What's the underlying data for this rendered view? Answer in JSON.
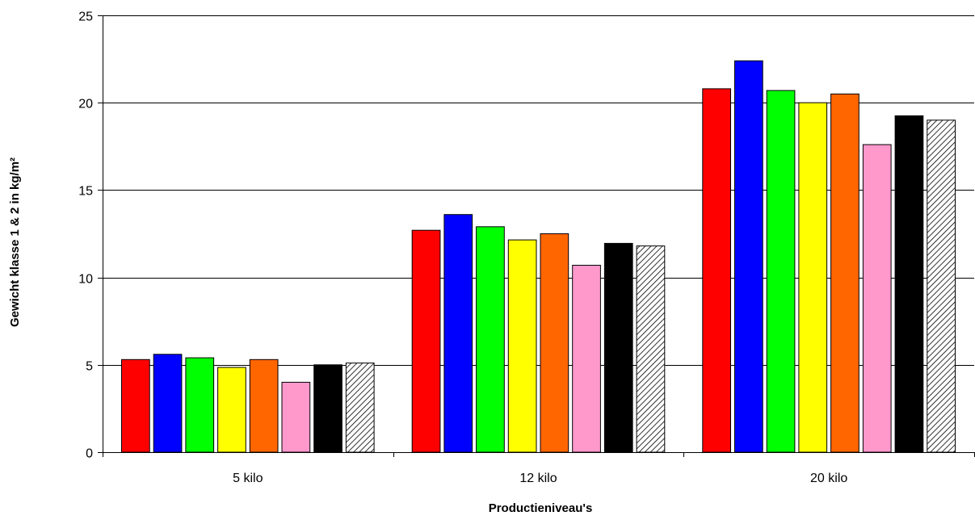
{
  "chart_data": {
    "type": "bar",
    "title": "",
    "xlabel": "Productieniveau's",
    "ylabel": "Gewicht klasse 1 & 2 in kg/m²",
    "ylim": [
      0,
      25
    ],
    "yticks": [
      0,
      5,
      10,
      15,
      20,
      25
    ],
    "grid": "horizontal",
    "legend": "none",
    "categories": [
      "5 kilo",
      "12 kilo",
      "20 kilo"
    ],
    "series": [
      {
        "color": "#ff0000",
        "values": [
          5.3,
          12.7,
          20.8
        ]
      },
      {
        "color": "#0000ff",
        "values": [
          5.6,
          13.6,
          22.4
        ]
      },
      {
        "color": "#00ff00",
        "values": [
          5.4,
          12.9,
          20.7
        ]
      },
      {
        "color": "#ffff00",
        "values": [
          4.85,
          12.15,
          20.0
        ]
      },
      {
        "color": "#ff6600",
        "values": [
          5.3,
          12.5,
          20.5
        ]
      },
      {
        "color": "#ff99cc",
        "values": [
          4.0,
          10.7,
          17.6
        ]
      },
      {
        "color": "#000000",
        "values": [
          5.0,
          11.95,
          19.25
        ]
      },
      {
        "color": "hatched",
        "values": [
          5.1,
          11.8,
          19.0
        ]
      }
    ]
  }
}
